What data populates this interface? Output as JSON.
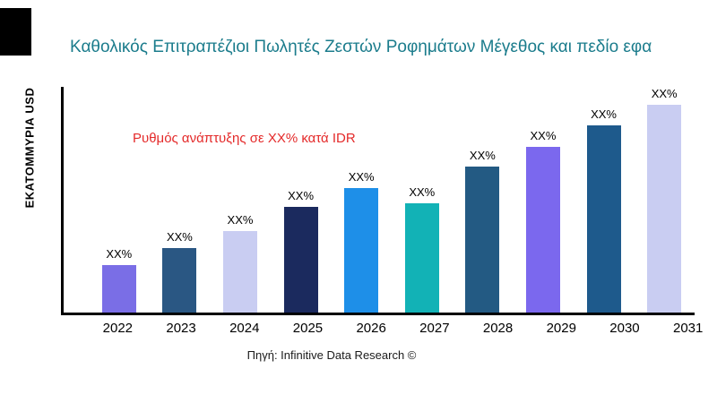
{
  "chart_data": {
    "type": "bar",
    "title": "Καθολικός Επιτραπέζιοι Πωλητές Ζεστών Ροφημάτων Μέγεθος και πεδίο εφα",
    "ylabel": "ΕΚΑΤΟΜΜΥΡΙΑ USD",
    "annotation": "Ρυθμός ανάπτυξης σε XX% κατά IDR",
    "source": "Πηγή: Infinitive Data Research ©",
    "categories": [
      "2022",
      "2023",
      "2024",
      "2025",
      "2026",
      "2027",
      "2028",
      "2029",
      "2030",
      "2031"
    ],
    "values": [
      22,
      30,
      38,
      49,
      58,
      51,
      68,
      77,
      87,
      97
    ],
    "bar_labels": [
      "XX%",
      "XX%",
      "XX%",
      "XX%",
      "XX%",
      "XX%",
      "XX%",
      "XX%",
      "XX%",
      "XX%"
    ],
    "bar_colors": [
      "#7a6ee6",
      "#2a5783",
      "#c9cdf2",
      "#1b2a5e",
      "#1e8fe8",
      "#12b2b6",
      "#235a83",
      "#7b68ee",
      "#1e5a8c",
      "#c9cdf2"
    ],
    "ylim": [
      0,
      105
    ],
    "grid": false,
    "legend_position": "none",
    "colors": {
      "title": "#1b7c8c",
      "annotation": "#e42a2a",
      "axis": "#000000",
      "text": "#000000",
      "background": "#ffffff"
    }
  }
}
